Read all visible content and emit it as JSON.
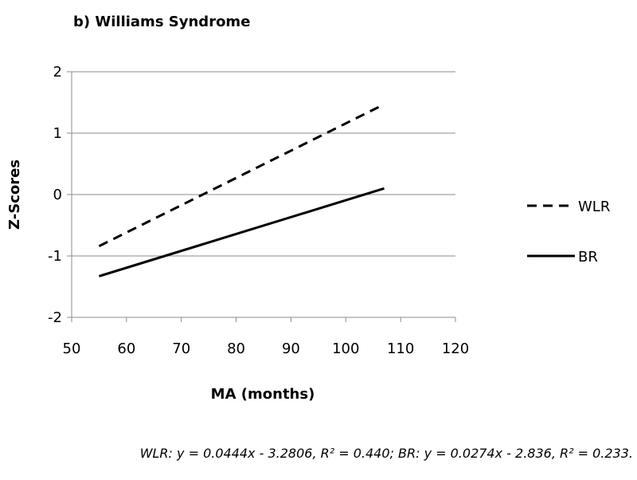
{
  "chart_data": {
    "type": "line",
    "title": "b) Williams Syndrome",
    "xlabel": "MA (months)",
    "ylabel": "Z-Scores",
    "xlim": [
      50,
      120
    ],
    "ylim": [
      -2,
      2
    ],
    "x_ticks": [
      "50",
      "60",
      "70",
      "80",
      "90",
      "100",
      "110",
      "120"
    ],
    "y_ticks": [
      "2",
      "1",
      "0",
      "-1",
      "-2"
    ],
    "grid": "horizontal",
    "legend_position": "right",
    "series": [
      {
        "name": "WLR",
        "style": "dashed",
        "color": "#000000",
        "x": [
          55,
          107
        ],
        "y": [
          -0.84,
          1.47
        ]
      },
      {
        "name": "BR",
        "style": "solid",
        "color": "#000000",
        "x": [
          55,
          107
        ],
        "y": [
          -1.33,
          0.1
        ]
      }
    ],
    "footnote": "WLR: y = 0.0444x - 3.2806, R² = 0.440; BR: y = 0.0274x - 2.836, R² = 0.233."
  }
}
